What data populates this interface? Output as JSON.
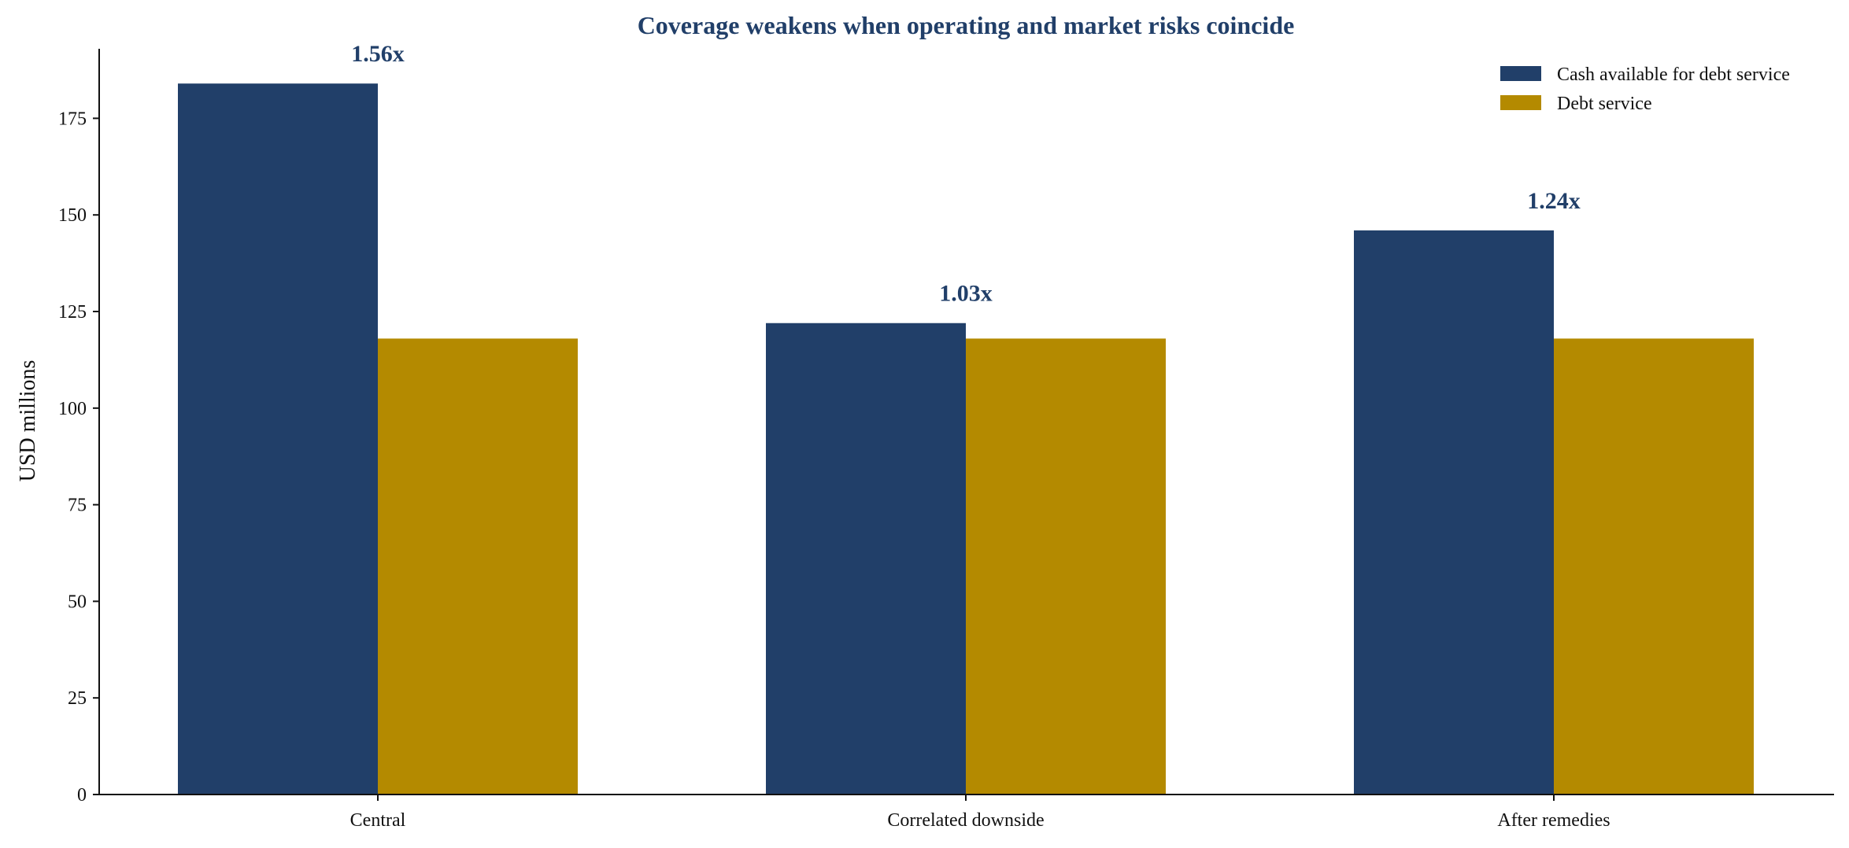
{
  "chart_data": {
    "type": "bar",
    "title": "Coverage weakens when operating and market risks coincide",
    "xlabel": "",
    "ylabel": "USD millions",
    "categories": [
      "Central",
      "Correlated downside",
      "After remedies"
    ],
    "series": [
      {
        "name": "Cash available for debt service",
        "values": [
          184,
          122,
          146
        ],
        "color": "#213f69"
      },
      {
        "name": "Debt service",
        "values": [
          118,
          118,
          118
        ],
        "color": "#b48a00"
      }
    ],
    "ratio_labels": [
      "1.56x",
      "1.03x",
      "1.24x"
    ],
    "ylim": [
      0,
      193
    ],
    "yticks": [
      0,
      25,
      50,
      75,
      100,
      125,
      150,
      175
    ],
    "grid": false,
    "legend_position": "top-right",
    "title_color": "#213f69"
  }
}
